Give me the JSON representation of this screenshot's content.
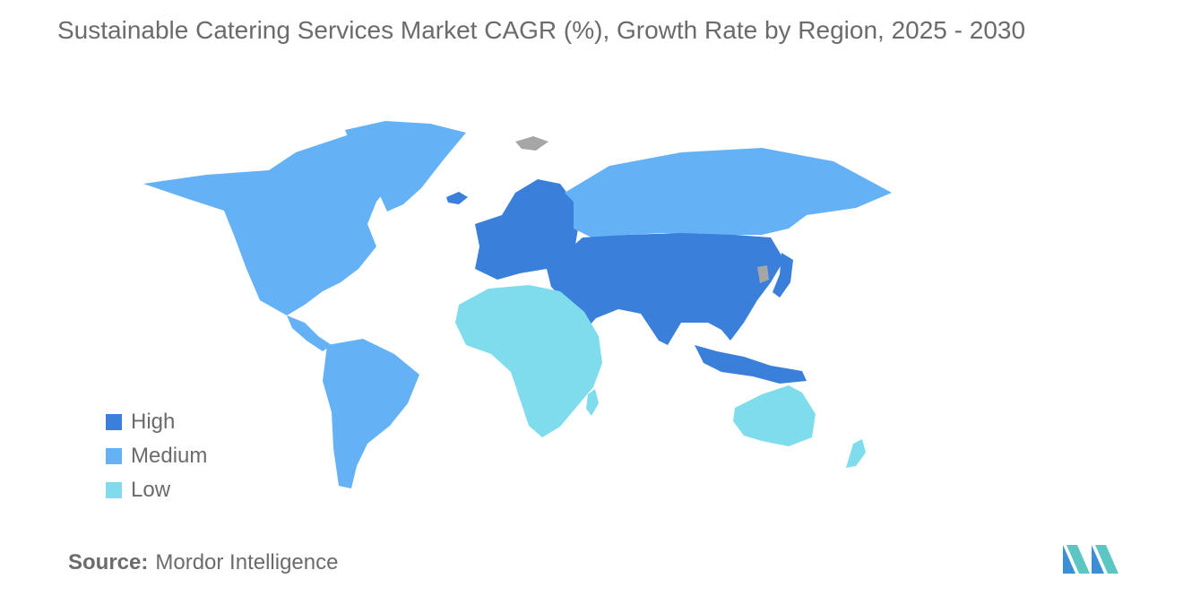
{
  "title": "Sustainable Catering Services Market CAGR (%), Growth Rate by Region, 2025 - 2030",
  "legend": [
    {
      "label": "High",
      "color": "#3a7fd9"
    },
    {
      "label": "Medium",
      "color": "#64b2f5"
    },
    {
      "label": "Low",
      "color": "#7fdced"
    }
  ],
  "no_data_color": "#a6a6a6",
  "source": {
    "label": "Source:",
    "value": "Mordor Intelligence"
  },
  "logo_color": "#3c8fd6"
}
